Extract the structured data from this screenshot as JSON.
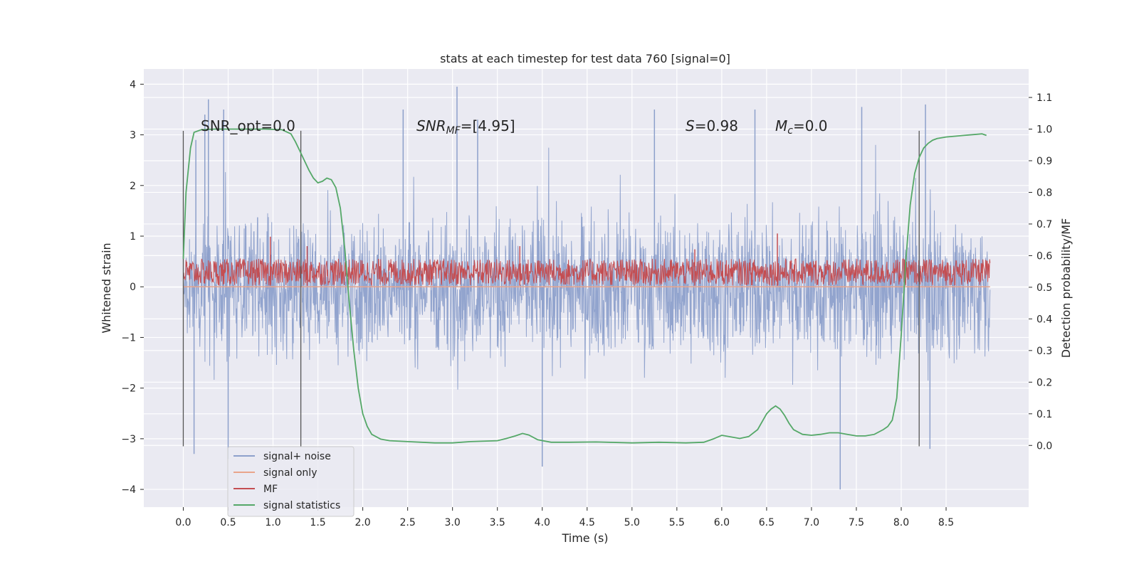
{
  "chart_data": {
    "type": "line",
    "title": "stats at each timestep for test data 760 [signal=0]",
    "xlabel": "Time (s)",
    "ylabel": "Whitened strain",
    "y2label": "Detection probability/MF",
    "xlim": [
      -0.44,
      9.42
    ],
    "ylim": [
      -4.35,
      4.3
    ],
    "y2lim": [
      -0.195,
      1.19
    ],
    "xticks": [
      "0.0",
      "0.5",
      "1.0",
      "1.5",
      "2.0",
      "2.5",
      "3.0",
      "3.5",
      "4.0",
      "4.5",
      "5.0",
      "5.5",
      "6.0",
      "6.5",
      "7.0",
      "7.5",
      "8.0",
      "8.5"
    ],
    "yticks": [
      "4",
      "3",
      "2",
      "1",
      "0",
      "−1",
      "−2",
      "−3",
      "−4"
    ],
    "y2ticks": [
      "1.1",
      "1.0",
      "0.9",
      "0.8",
      "0.7",
      "0.6",
      "0.5",
      "0.4",
      "0.3",
      "0.2",
      "0.1",
      "0.0"
    ],
    "grid": true,
    "legend_position": "lower-left",
    "annotations": {
      "snr_opt": "SNR_opt=0.0",
      "snr_mf_base": "SNR",
      "snr_mf_sub": "MF",
      "snr_mf_value": "=[4.95]",
      "s_symbol": "S",
      "s_value": "=0.98",
      "mc_base": "M",
      "mc_sub": "c",
      "mc_value": "=0.0"
    },
    "vertical_markers_x": [
      0.0,
      1.31,
      8.2
    ],
    "vertical_markers_yrange": [
      -3.15,
      3.08
    ],
    "series": [
      {
        "name": "signal+ noise",
        "color": "#8da0cb",
        "x_range": [
          0.0,
          8.99
        ],
        "envelope": "noise band, mostly -2 to 2, peaks near ±3.5",
        "peaks": [
          [
            0.14,
            2.9
          ],
          [
            0.24,
            3.4
          ],
          [
            0.28,
            3.7
          ],
          [
            0.45,
            3.5
          ],
          [
            0.5,
            -3.4
          ],
          [
            0.12,
            -3.3
          ],
          [
            2.45,
            3.5
          ],
          [
            3.05,
            3.95
          ],
          [
            3.28,
            3.3
          ],
          [
            4.0,
            -3.55
          ],
          [
            5.25,
            3.5
          ],
          [
            6.37,
            3.5
          ],
          [
            7.32,
            -4.0
          ],
          [
            7.56,
            3.55
          ],
          [
            8.27,
            3.6
          ],
          [
            8.32,
            -3.2
          ]
        ]
      },
      {
        "name": "signal only",
        "color": "#e9a58b",
        "x": [
          0.0,
          8.99
        ],
        "y": [
          0.0,
          0.0
        ]
      },
      {
        "name": "MF",
        "color": "#c44e52",
        "x_range": [
          0.0,
          8.99
        ],
        "band_right_axis": [
          0.505,
          0.59
        ],
        "peaks_right_axis": [
          [
            0.97,
            0.66
          ],
          [
            1.38,
            0.63
          ],
          [
            3.75,
            0.63
          ],
          [
            6.62,
            0.67
          ],
          [
            5.7,
            0.62
          ]
        ]
      },
      {
        "name": "signal statistics",
        "color": "#55a868",
        "axis": "right",
        "x": [
          0.0,
          0.03,
          0.08,
          0.12,
          0.2,
          0.35,
          0.6,
          0.9,
          1.1,
          1.2,
          1.25,
          1.3,
          1.35,
          1.4,
          1.45,
          1.5,
          1.55,
          1.6,
          1.65,
          1.7,
          1.75,
          1.8,
          1.85,
          1.9,
          1.95,
          2.0,
          2.05,
          2.1,
          2.2,
          2.3,
          2.5,
          2.8,
          3.0,
          3.2,
          3.5,
          3.6,
          3.7,
          3.78,
          3.85,
          3.95,
          4.1,
          4.3,
          4.6,
          5.0,
          5.3,
          5.6,
          5.8,
          5.9,
          6.0,
          6.1,
          6.2,
          6.3,
          6.4,
          6.5,
          6.55,
          6.6,
          6.65,
          6.7,
          6.75,
          6.8,
          6.9,
          7.0,
          7.1,
          7.2,
          7.3,
          7.4,
          7.5,
          7.6,
          7.7,
          7.8,
          7.85,
          7.9,
          7.95,
          8.0,
          8.05,
          8.1,
          8.15,
          8.2,
          8.25,
          8.3,
          8.35,
          8.4,
          8.5,
          8.7,
          8.9,
          8.95
        ],
        "y": [
          0.59,
          0.8,
          0.94,
          0.99,
          0.998,
          1.0,
          1.0,
          1.0,
          0.998,
          0.985,
          0.96,
          0.93,
          0.9,
          0.87,
          0.845,
          0.83,
          0.835,
          0.845,
          0.84,
          0.815,
          0.75,
          0.62,
          0.45,
          0.3,
          0.18,
          0.1,
          0.06,
          0.035,
          0.02,
          0.015,
          0.012,
          0.008,
          0.008,
          0.012,
          0.015,
          0.022,
          0.03,
          0.038,
          0.033,
          0.018,
          0.01,
          0.01,
          0.011,
          0.008,
          0.01,
          0.008,
          0.01,
          0.02,
          0.032,
          0.027,
          0.022,
          0.028,
          0.05,
          0.1,
          0.115,
          0.125,
          0.115,
          0.095,
          0.07,
          0.05,
          0.035,
          0.032,
          0.035,
          0.04,
          0.04,
          0.035,
          0.03,
          0.03,
          0.035,
          0.05,
          0.06,
          0.08,
          0.15,
          0.35,
          0.58,
          0.76,
          0.86,
          0.91,
          0.94,
          0.955,
          0.965,
          0.97,
          0.975,
          0.98,
          0.985,
          0.98
        ]
      }
    ]
  }
}
